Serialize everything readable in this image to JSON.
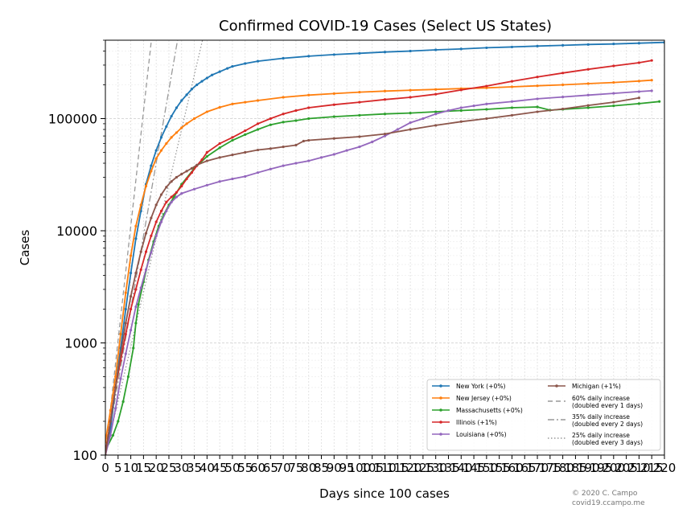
{
  "chart_data": {
    "type": "line",
    "title": "Confirmed COVID-19 Cases (Select US States)",
    "xlabel": "Days since 100 cases",
    "ylabel": "Cases",
    "xlim": [
      0,
      220
    ],
    "ylim": [
      100,
      500000
    ],
    "yscale": "log",
    "grid": true,
    "legend_position": "lower-right",
    "xticks": [
      "0",
      "5",
      "10",
      "15",
      "20",
      "25",
      "30",
      "35",
      "40",
      "45",
      "50",
      "55",
      "60",
      "65",
      "70",
      "75",
      "80",
      "85",
      "90",
      "95",
      "100",
      "105",
      "110",
      "115",
      "120",
      "125",
      "130",
      "135",
      "140",
      "145",
      "150",
      "155",
      "160",
      "165",
      "170",
      "175",
      "180",
      "185",
      "190",
      "195",
      "200",
      "205",
      "210",
      "215",
      "220"
    ],
    "yticks": [
      {
        "value": 100,
        "label": "100"
      },
      {
        "value": 1000,
        "label": "1000"
      },
      {
        "value": 10000,
        "label": "10000"
      },
      {
        "value": 100000,
        "label": "100000"
      }
    ],
    "series": [
      {
        "name": "New York (+0%)",
        "color": "#1f77b4",
        "marker": "dot",
        "points": [
          [
            0,
            100
          ],
          [
            2,
            170
          ],
          [
            4,
            400
          ],
          [
            6,
            900
          ],
          [
            8,
            2000
          ],
          [
            10,
            4200
          ],
          [
            12,
            8500
          ],
          [
            14,
            15000
          ],
          [
            16,
            26000
          ],
          [
            18,
            38000
          ],
          [
            20,
            52000
          ],
          [
            22,
            68000
          ],
          [
            24,
            85000
          ],
          [
            26,
            105000
          ],
          [
            28,
            125000
          ],
          [
            30,
            145000
          ],
          [
            32,
            163000
          ],
          [
            34,
            183000
          ],
          [
            36,
            200000
          ],
          [
            38,
            215000
          ],
          [
            40,
            230000
          ],
          [
            42,
            245000
          ],
          [
            45,
            262000
          ],
          [
            48,
            280000
          ],
          [
            50,
            292000
          ],
          [
            55,
            310000
          ],
          [
            60,
            325000
          ],
          [
            70,
            345000
          ],
          [
            80,
            360000
          ],
          [
            90,
            372000
          ],
          [
            100,
            382000
          ],
          [
            110,
            392000
          ],
          [
            120,
            400000
          ],
          [
            130,
            410000
          ],
          [
            140,
            418000
          ],
          [
            150,
            428000
          ],
          [
            160,
            435000
          ],
          [
            170,
            443000
          ],
          [
            180,
            450000
          ],
          [
            190,
            458000
          ],
          [
            200,
            463000
          ],
          [
            210,
            470000
          ],
          [
            220,
            478000
          ]
        ]
      },
      {
        "name": "New Jersey (+0%)",
        "color": "#ff7f0e",
        "marker": "dot",
        "points": [
          [
            0,
            130
          ],
          [
            2,
            250
          ],
          [
            4,
            500
          ],
          [
            6,
            1200
          ],
          [
            8,
            2800
          ],
          [
            10,
            6000
          ],
          [
            12,
            11000
          ],
          [
            14,
            17000
          ],
          [
            16,
            25000
          ],
          [
            18,
            34000
          ],
          [
            20,
            44000
          ],
          [
            22,
            52000
          ],
          [
            24,
            60000
          ],
          [
            26,
            68000
          ],
          [
            28,
            75000
          ],
          [
            30,
            83000
          ],
          [
            32,
            90000
          ],
          [
            35,
            100000
          ],
          [
            40,
            115000
          ],
          [
            45,
            126000
          ],
          [
            50,
            135000
          ],
          [
            55,
            140000
          ],
          [
            60,
            145000
          ],
          [
            70,
            155000
          ],
          [
            80,
            162000
          ],
          [
            90,
            167000
          ],
          [
            100,
            172000
          ],
          [
            110,
            176000
          ],
          [
            120,
            179000
          ],
          [
            130,
            182000
          ],
          [
            140,
            185000
          ],
          [
            150,
            188000
          ],
          [
            160,
            192000
          ],
          [
            170,
            196000
          ],
          [
            180,
            200000
          ],
          [
            190,
            205000
          ],
          [
            200,
            210000
          ],
          [
            210,
            216000
          ],
          [
            215,
            220000
          ]
        ]
      },
      {
        "name": "Massachusetts (+0%)",
        "color": "#2ca02c",
        "marker": "dot",
        "points": [
          [
            0,
            110
          ],
          [
            3,
            150
          ],
          [
            5,
            200
          ],
          [
            7,
            300
          ],
          [
            9,
            500
          ],
          [
            11,
            900
          ],
          [
            12,
            1500
          ],
          [
            13,
            2200
          ],
          [
            15,
            3500
          ],
          [
            17,
            5500
          ],
          [
            19,
            8000
          ],
          [
            21,
            11000
          ],
          [
            23,
            14000
          ],
          [
            25,
            17000
          ],
          [
            27,
            20000
          ],
          [
            30,
            26000
          ],
          [
            35,
            36000
          ],
          [
            40,
            46000
          ],
          [
            45,
            55000
          ],
          [
            50,
            64000
          ],
          [
            55,
            72000
          ],
          [
            60,
            80000
          ],
          [
            65,
            88000
          ],
          [
            70,
            93000
          ],
          [
            75,
            96000
          ],
          [
            80,
            100000
          ],
          [
            90,
            104000
          ],
          [
            100,
            107000
          ],
          [
            110,
            110000
          ],
          [
            120,
            112000
          ],
          [
            130,
            115000
          ],
          [
            140,
            118000
          ],
          [
            150,
            121000
          ],
          [
            160,
            125000
          ],
          [
            170,
            127000
          ],
          [
            175,
            119000
          ],
          [
            180,
            121000
          ],
          [
            190,
            125000
          ],
          [
            200,
            130000
          ],
          [
            210,
            136000
          ],
          [
            218,
            142000
          ]
        ]
      },
      {
        "name": "Illinois (+1%)",
        "color": "#d62728",
        "marker": "dot",
        "points": [
          [
            0,
            105
          ],
          [
            2,
            200
          ],
          [
            4,
            400
          ],
          [
            6,
            700
          ],
          [
            8,
            1200
          ],
          [
            10,
            2000
          ],
          [
            12,
            3000
          ],
          [
            14,
            4500
          ],
          [
            16,
            6500
          ],
          [
            18,
            9000
          ],
          [
            20,
            12000
          ],
          [
            22,
            15000
          ],
          [
            24,
            18000
          ],
          [
            26,
            20000
          ],
          [
            28,
            22000
          ],
          [
            30,
            25000
          ],
          [
            32,
            29000
          ],
          [
            34,
            33000
          ],
          [
            36,
            38000
          ],
          [
            38,
            43000
          ],
          [
            40,
            50000
          ],
          [
            45,
            60000
          ],
          [
            50,
            68000
          ],
          [
            55,
            78000
          ],
          [
            60,
            90000
          ],
          [
            65,
            100000
          ],
          [
            70,
            110000
          ],
          [
            75,
            118000
          ],
          [
            80,
            125000
          ],
          [
            90,
            133000
          ],
          [
            100,
            140000
          ],
          [
            110,
            148000
          ],
          [
            120,
            155000
          ],
          [
            130,
            165000
          ],
          [
            140,
            180000
          ],
          [
            150,
            195000
          ],
          [
            160,
            215000
          ],
          [
            170,
            235000
          ],
          [
            180,
            255000
          ],
          [
            190,
            275000
          ],
          [
            200,
            295000
          ],
          [
            210,
            315000
          ],
          [
            215,
            330000
          ]
        ]
      },
      {
        "name": "Louisiana (+0%)",
        "color": "#9467bd",
        "marker": "dot",
        "points": [
          [
            0,
            100
          ],
          [
            2,
            150
          ],
          [
            4,
            260
          ],
          [
            6,
            480
          ],
          [
            8,
            800
          ],
          [
            10,
            1300
          ],
          [
            12,
            2100
          ],
          [
            14,
            3100
          ],
          [
            16,
            4500
          ],
          [
            18,
            6400
          ],
          [
            20,
            9000
          ],
          [
            22,
            12000
          ],
          [
            24,
            15000
          ],
          [
            26,
            18000
          ],
          [
            28,
            20000
          ],
          [
            30,
            21500
          ],
          [
            35,
            23500
          ],
          [
            40,
            25500
          ],
          [
            45,
            27500
          ],
          [
            50,
            29000
          ],
          [
            55,
            30500
          ],
          [
            60,
            33000
          ],
          [
            65,
            35500
          ],
          [
            70,
            38000
          ],
          [
            75,
            40000
          ],
          [
            80,
            42000
          ],
          [
            85,
            45000
          ],
          [
            90,
            48000
          ],
          [
            95,
            52000
          ],
          [
            100,
            56000
          ],
          [
            105,
            62000
          ],
          [
            110,
            70000
          ],
          [
            115,
            80000
          ],
          [
            120,
            92000
          ],
          [
            125,
            100000
          ],
          [
            130,
            110000
          ],
          [
            135,
            118000
          ],
          [
            140,
            125000
          ],
          [
            145,
            130000
          ],
          [
            150,
            135000
          ],
          [
            160,
            142000
          ],
          [
            170,
            150000
          ],
          [
            180,
            156000
          ],
          [
            190,
            162000
          ],
          [
            200,
            168000
          ],
          [
            210,
            174000
          ],
          [
            215,
            177000
          ]
        ]
      },
      {
        "name": "Michigan (+1%)",
        "color": "#8c564b",
        "marker": "dot",
        "points": [
          [
            0,
            100
          ],
          [
            2,
            200
          ],
          [
            4,
            400
          ],
          [
            6,
            800
          ],
          [
            8,
            1500
          ],
          [
            10,
            2600
          ],
          [
            12,
            4200
          ],
          [
            14,
            6500
          ],
          [
            16,
            9500
          ],
          [
            18,
            13000
          ],
          [
            20,
            17000
          ],
          [
            22,
            21000
          ],
          [
            24,
            24500
          ],
          [
            26,
            27500
          ],
          [
            28,
            30000
          ],
          [
            30,
            32000
          ],
          [
            32,
            34000
          ],
          [
            34,
            36000
          ],
          [
            36,
            38500
          ],
          [
            40,
            42000
          ],
          [
            45,
            45000
          ],
          [
            50,
            47500
          ],
          [
            55,
            50000
          ],
          [
            60,
            52500
          ],
          [
            65,
            54000
          ],
          [
            70,
            56000
          ],
          [
            75,
            58000
          ],
          [
            78,
            63000
          ],
          [
            80,
            64000
          ],
          [
            90,
            66500
          ],
          [
            100,
            69000
          ],
          [
            110,
            73000
          ],
          [
            120,
            80000
          ],
          [
            130,
            87000
          ],
          [
            140,
            94000
          ],
          [
            150,
            100000
          ],
          [
            160,
            107000
          ],
          [
            170,
            115000
          ],
          [
            180,
            122000
          ],
          [
            190,
            131000
          ],
          [
            200,
            140000
          ],
          [
            210,
            153000
          ]
        ]
      },
      {
        "name": "60% daily increase\n(doubled every 1 days)",
        "color": "#999999",
        "dash": "6,4",
        "points": [
          [
            0,
            100
          ],
          [
            18.1,
            500000
          ]
        ]
      },
      {
        "name": "35% daily increase\n(doubled every 2 days)",
        "color": "#999999",
        "dash": "8,3,2,3",
        "points": [
          [
            0,
            100
          ],
          [
            28.4,
            500000
          ]
        ]
      },
      {
        "name": "25% daily increase\n(doubled every 3 days)",
        "color": "#999999",
        "dash": "1.5,2.5",
        "points": [
          [
            0,
            100
          ],
          [
            38.2,
            500000
          ]
        ]
      }
    ],
    "legend": [
      "New York (+0%)",
      "New Jersey (+0%)",
      "Massachusetts (+0%)",
      "Illinois (+1%)",
      "Louisiana (+0%)",
      "Michigan (+1%)",
      "60% daily increase\n(doubled every 1 days)",
      "35% daily increase\n(doubled every 2 days)",
      "25% daily increase\n(doubled every 3 days)"
    ]
  },
  "credit": [
    "© 2020 C. Campo",
    "covid19.ccampo.me"
  ]
}
